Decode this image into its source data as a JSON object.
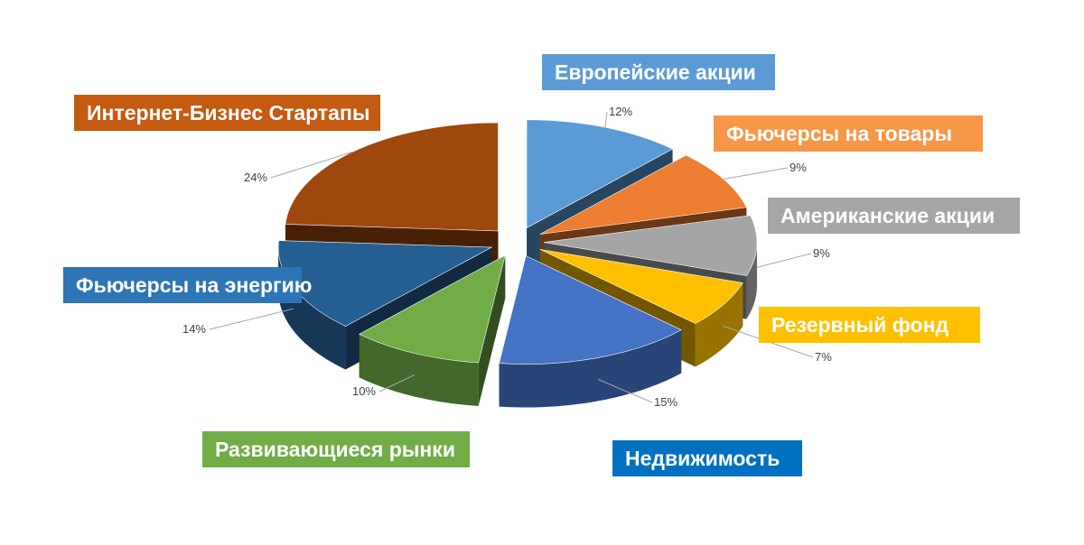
{
  "chart_data": {
    "type": "pie",
    "style": "3d-exploded",
    "slices": [
      {
        "name": "Европейские акции",
        "value": 12,
        "label": "12%",
        "color": "#5b9bd5"
      },
      {
        "name": "Фьючерсы на товары",
        "value": 9,
        "label": "9%",
        "color": "#ed7d31"
      },
      {
        "name": "Американские акции",
        "value": 9,
        "label": "9%",
        "color": "#a5a5a5"
      },
      {
        "name": "Резервный фонд",
        "value": 7,
        "label": "7%",
        "color": "#ffc000"
      },
      {
        "name": "Недвижимость",
        "value": 15,
        "label": "15%",
        "color": "#4472c4"
      },
      {
        "name": "Развивающиеся рынки",
        "value": 10,
        "label": "10%",
        "color": "#70ad47"
      },
      {
        "name": "Фьючерсы  на энергию",
        "value": 14,
        "label": "14%",
        "color": "#255e91"
      },
      {
        "name": "Интернет-Бизнес Стартапы",
        "value": 24,
        "label": "24%",
        "color": "#9e480e"
      }
    ],
    "legend_colors": [
      "#5b9bd5",
      "#ed7d31",
      "#a5a5a5",
      "#ffc000",
      "#0070c0",
      "#70ad47",
      "#2e75b6",
      "#c55a11"
    ]
  }
}
